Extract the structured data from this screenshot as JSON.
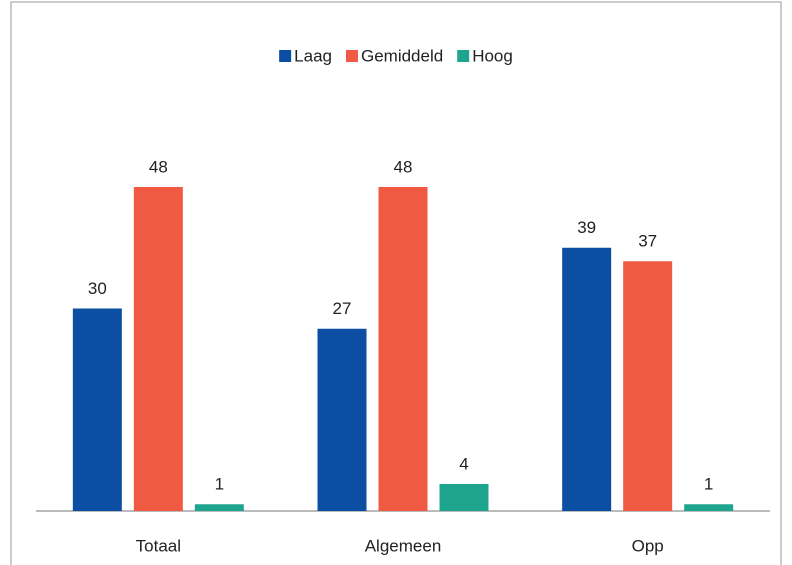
{
  "chart_data": {
    "type": "bar",
    "categories": [
      "Totaal",
      "Algemeen",
      "Opp"
    ],
    "series": [
      {
        "name": "Laag",
        "color": "#0b4ea2",
        "values": [
          30,
          27,
          39
        ]
      },
      {
        "name": "Gemiddeld",
        "color": "#f05a42",
        "values": [
          48,
          48,
          37
        ]
      },
      {
        "name": "Hoog",
        "color": "#1fa58f",
        "values": [
          1,
          4,
          1
        ]
      }
    ],
    "ylim": [
      0,
      60
    ],
    "legend": "top"
  }
}
